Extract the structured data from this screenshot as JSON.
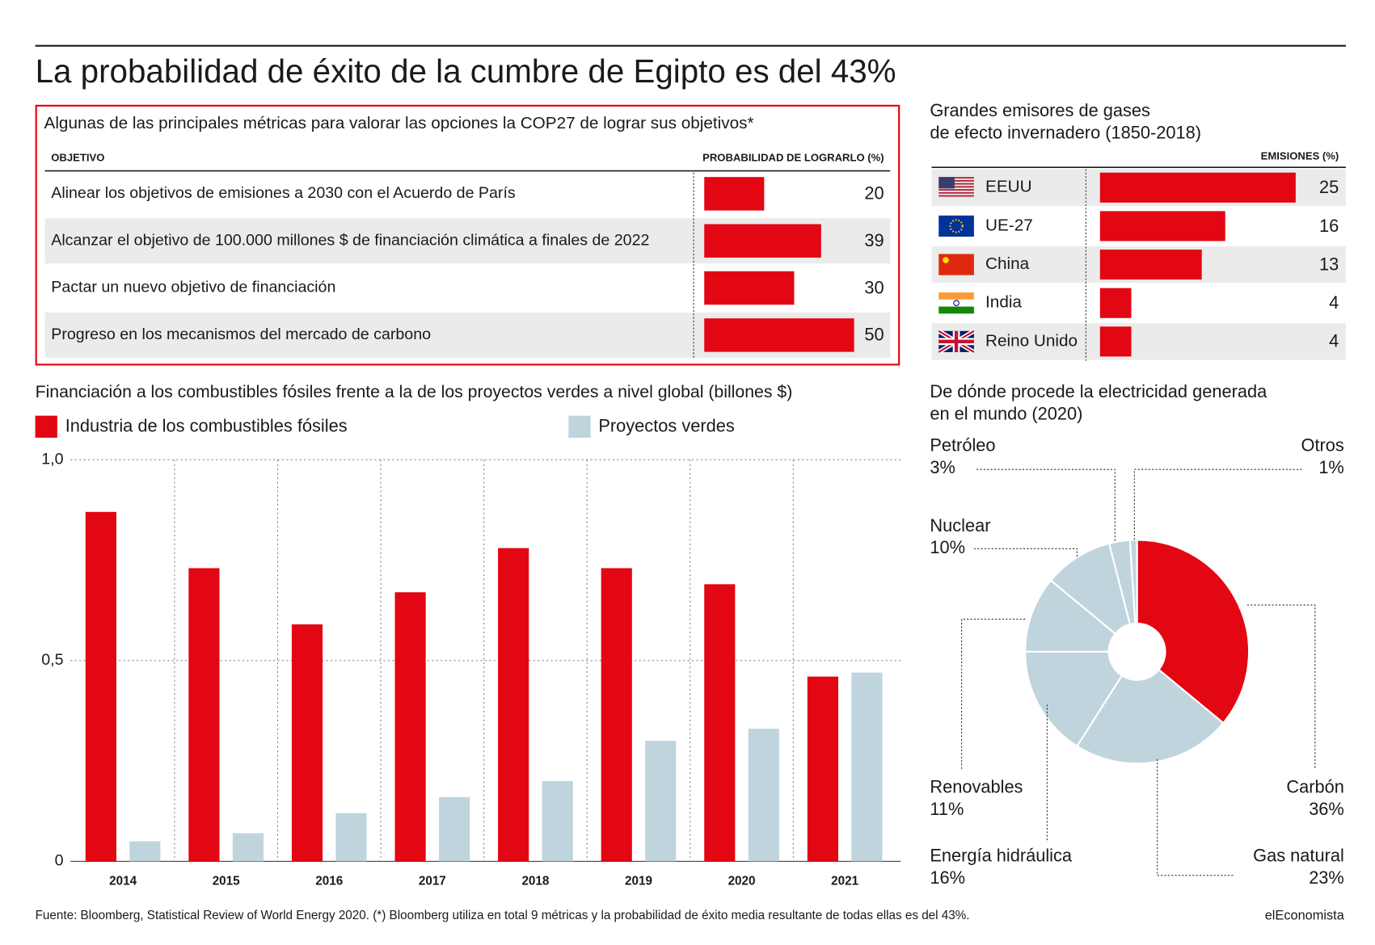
{
  "title": "La probabilidad de éxito de la cumbre de Egipto es del 43%",
  "source": "Fuente: Bloomberg, Statistical Review of World Energy 2020. (*) Bloomberg utiliza en total 9 métricas y la probabilidad de éxito media resultante de todas ellas es del 43%.",
  "brand": "elEconomista",
  "chart_data": [
    {
      "type": "barh",
      "title": "Algunas de las principales métricas para valorar las opciones la COP27 de lograr sus objetivos*",
      "category_header": "OBJETIVO",
      "value_header": "PROBABILIDAD DE LOGRARLO (%)",
      "categories": [
        "Alinear los objetivos de emisiones a 2030 con el Acuerdo de París",
        "Alcanzar el objetivo de 100.000 millones $ de financiación climática a finales de 2022",
        "Pactar un nuevo objetivo de financiación",
        "Progreso en los mecanismos del mercado de carbono"
      ],
      "values": [
        20,
        39,
        30,
        50
      ],
      "color": "#e30613",
      "xlim": [
        0,
        50
      ]
    },
    {
      "type": "barh",
      "title": [
        "Grandes emisores de gases",
        "de efecto invernadero (1850-2018)"
      ],
      "value_header": "EMISIONES (%)",
      "categories": [
        "EEUU",
        "UE-27",
        "China",
        "India",
        "Reino Unido"
      ],
      "values": [
        25,
        16,
        13,
        4,
        4
      ],
      "color": "#e30613",
      "xlim": [
        0,
        25
      ]
    },
    {
      "type": "bar",
      "title": "Financiación a los combustibles fósiles frente a la de los proyectos verdes a nivel global (billones $)",
      "categories": [
        "2014",
        "2015",
        "2016",
        "2017",
        "2018",
        "2019",
        "2020",
        "2021"
      ],
      "series": [
        {
          "name": "Industria de los combustibles fósiles",
          "color": "#e30613",
          "values": [
            0.87,
            0.73,
            0.59,
            0.67,
            0.78,
            0.73,
            0.69,
            0.46
          ]
        },
        {
          "name": "Proyectos verdes",
          "color": "#c0d4de",
          "values": [
            0.05,
            0.07,
            0.12,
            0.16,
            0.2,
            0.3,
            0.33,
            0.47
          ]
        }
      ],
      "ylim": [
        0,
        1
      ],
      "yticks": [
        {
          "value": 1,
          "label": "1,0"
        },
        {
          "value": 0.5,
          "label": "0,5"
        },
        0
      ],
      "grid": true
    },
    {
      "type": "pie",
      "title": [
        "De dónde procede la electricidad generada",
        "en el mundo (2020)"
      ],
      "categories": [
        "Carbón",
        "Gas natural",
        "Energía hidráulica",
        "Renovables",
        "Nuclear",
        "Petróleo",
        "Otros"
      ],
      "values": [
        36,
        23,
        16,
        11,
        10,
        3,
        1
      ],
      "value_labels": [
        "36%",
        "23%",
        "16%",
        "11%",
        "10%",
        "3%",
        "1%"
      ],
      "colors": [
        "#e30613",
        "#c0d4de",
        "#c0d4de",
        "#c0d4de",
        "#c0d4de",
        "#c0d4de",
        "#c0d4de"
      ]
    }
  ]
}
